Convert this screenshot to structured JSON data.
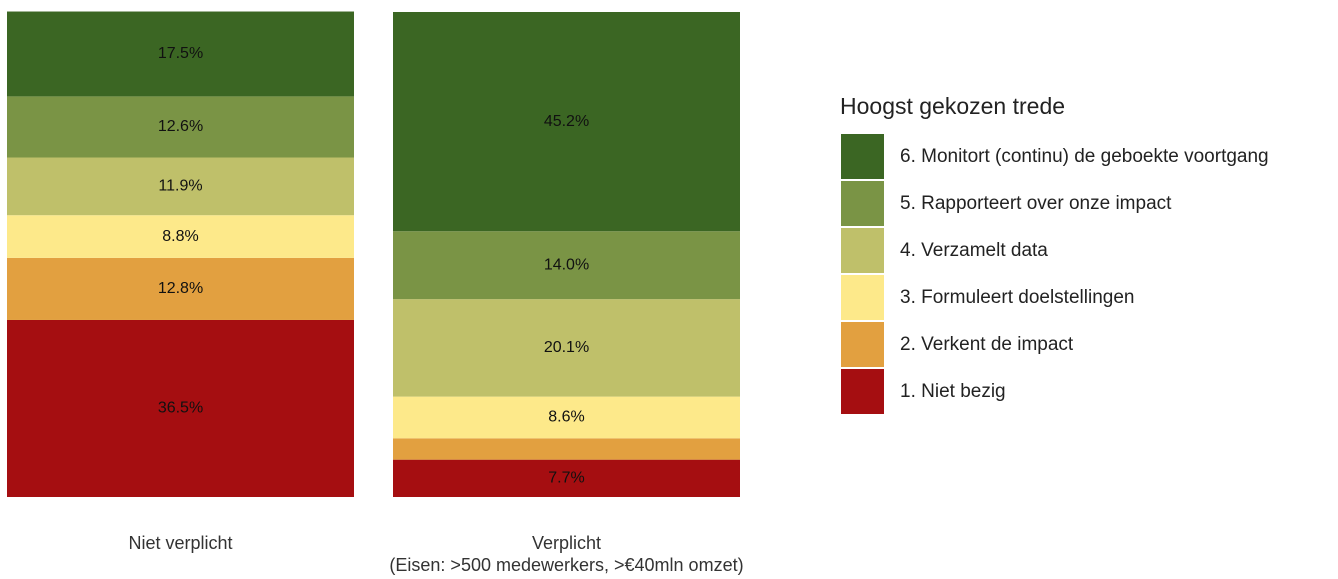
{
  "chart_data": {
    "type": "stacked_bar",
    "categories": [
      "Niet verplicht",
      "Verplicht\n(Eisen: >500 medewerkers, >€40mln omzet)"
    ],
    "legend_title": "Hoogst gekozen trede",
    "ylim": [
      0,
      100
    ],
    "series": [
      {
        "name": "6. Monitort (continu) de geboekte voortgang",
        "color": "#3b6623",
        "values": [
          17.5,
          45.2
        ],
        "value_labels": [
          "17.5%",
          "45.2%"
        ]
      },
      {
        "name": "5. Rapporteert over onze impact",
        "color": "#7a9445",
        "values": [
          12.6,
          14.0
        ],
        "value_labels": [
          "12.6%",
          "14.0%"
        ]
      },
      {
        "name": "4. Verzamelt data",
        "color": "#bfc06a",
        "values": [
          11.9,
          20.1
        ],
        "value_labels": [
          "11.9%",
          "20.1%"
        ]
      },
      {
        "name": "3. Formuleert doelstellingen",
        "color": "#fde98a",
        "values": [
          8.8,
          8.6
        ],
        "value_labels": [
          "8.8%",
          "8.6%"
        ]
      },
      {
        "name": "2. Verkent de impact",
        "color": "#e2a040",
        "values": [
          12.8,
          4.4
        ],
        "value_labels": [
          "12.8%",
          null
        ]
      },
      {
        "name": "1. Niet bezig",
        "color": "#a50e11",
        "values": [
          36.5,
          7.7
        ],
        "value_labels": [
          "36.5%",
          "7.7%"
        ]
      }
    ]
  }
}
